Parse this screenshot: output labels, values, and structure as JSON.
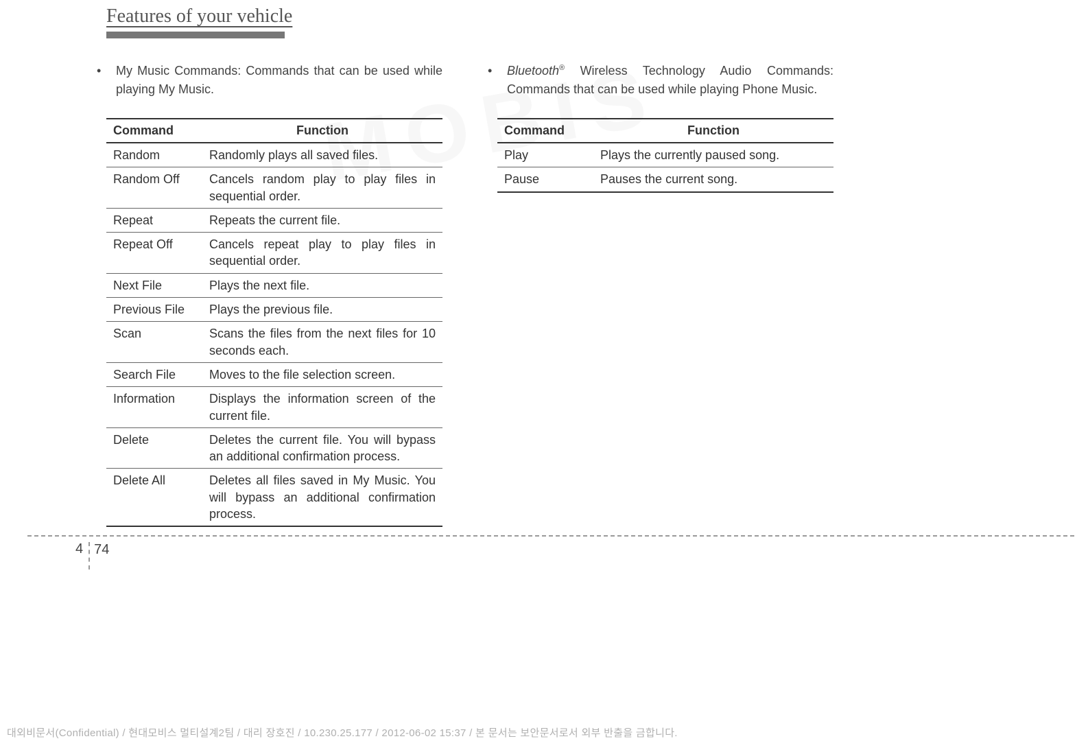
{
  "header": {
    "title": "Features of your vehicle"
  },
  "left": {
    "intro_prefix": "• ",
    "intro": "My Music Commands: Commands that can be used while playing My Music.",
    "table": {
      "columns": [
        "Command",
        "Function"
      ],
      "col_widths": [
        "140px",
        "auto"
      ],
      "rows": [
        [
          "Random",
          "Randomly plays all saved files."
        ],
        [
          "Random Off",
          "Cancels random play to play files in sequential order."
        ],
        [
          "Repeat",
          "Repeats the current file."
        ],
        [
          "Repeat Off",
          "Cancels repeat play to play files in sequential order."
        ],
        [
          "Next File",
          "Plays the next file."
        ],
        [
          "Previous File",
          "Plays the previous file."
        ],
        [
          "Scan",
          "Scans the files from the next files for 10 seconds each."
        ],
        [
          "Search File",
          "Moves to the file selection screen."
        ],
        [
          "Information",
          "Displays the information screen of the current file."
        ],
        [
          "Delete",
          "Deletes the current file. You will bypass an additional confirmation process."
        ],
        [
          "Delete All",
          "Deletes all files saved in My Music. You will bypass an additional confirmation process."
        ]
      ]
    }
  },
  "right": {
    "intro_prefix": "• ",
    "intro_italic": "Bluetooth",
    "intro_reg": "®",
    "intro_rest": " Wireless Technology Audio Commands: Commands that can be used while playing Phone Music.",
    "table": {
      "columns": [
        "Command",
        "Function"
      ],
      "col_widths": [
        "140px",
        "auto"
      ],
      "rows": [
        [
          "Play",
          "Plays the currently paused song."
        ],
        [
          "Pause",
          "Pauses the current song."
        ]
      ]
    }
  },
  "page": {
    "section": "4",
    "number": "74"
  },
  "confidential": "대외비문서(Confidential) / 현대모비스 멀티설계2팀 / 대리 장호진 / 10.230.25.177 / 2012-06-02 15:37 /  본 문서는 보안문서로서 외부 반출을 금합니다.",
  "style": {
    "body_bg": "#ffffff",
    "text_color": "#333333",
    "header_font": "Georgia",
    "body_font": "Arial",
    "header_fontsize": 28,
    "body_fontsize": 18,
    "table_border_color": "#333333",
    "table_row_border_color": "#666666",
    "dash_color": "#999999",
    "confidential_color": "#b0b0b0",
    "header_bar_color": "#777777"
  }
}
